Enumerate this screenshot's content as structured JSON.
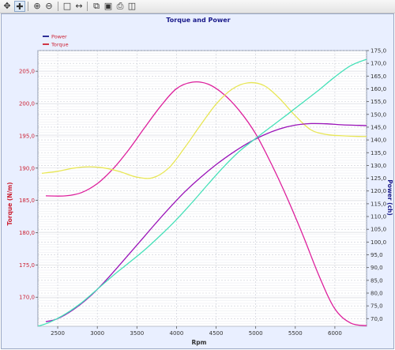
{
  "toolbar": {
    "icons": [
      "pan-icon",
      "move-icon",
      "zoom-in-icon",
      "zoom-out-icon",
      "select-box-icon",
      "cursor-icon",
      "copy-icon",
      "save-icon",
      "print-icon",
      "export-icon"
    ]
  },
  "chart_data": {
    "type": "line",
    "title": "Torque and Power",
    "xlabel": "Rpm",
    "ylabel_left": "Torque (N/m)",
    "ylabel_right": "Power (ch)",
    "xlim": [
      2250,
      6400
    ],
    "ylim_left": [
      165.5,
      208.2
    ],
    "ylim_right": [
      67,
      175
    ],
    "x_ticks": [
      "2500",
      "3000",
      "3500",
      "4000",
      "4500",
      "5000",
      "5500",
      "6000"
    ],
    "y_ticks_left": [
      "170,0",
      "175,0",
      "180,0",
      "185,0",
      "190,0",
      "195,0",
      "200,0",
      "205,0"
    ],
    "y_ticks_right": [
      "70,0",
      "75,0",
      "80,0",
      "85,0",
      "90,0",
      "95,0",
      "100,0",
      "105,0",
      "110,0",
      "115,0",
      "120,0",
      "125,0",
      "130,0",
      "135,0",
      "140,0",
      "145,0",
      "150,0",
      "155,0",
      "160,0",
      "165,0",
      "170,0",
      "175,0"
    ],
    "legend": {
      "placement": "top-left",
      "entries": [
        {
          "name": "Power",
          "color": "#1a1a8a"
        },
        {
          "name": "Torque",
          "color": "#cc2233"
        }
      ]
    },
    "grid": true,
    "colors": {
      "plot_bg": "#ffffff",
      "frame_bg": "#e9efff",
      "title": "#1a1a8a",
      "left_axis": "#cc2233",
      "right_axis": "#1a1a8a"
    },
    "series": [
      {
        "name": "Torque",
        "axis": "left",
        "color": "#dd1f9c",
        "x": [
          2350,
          2600,
          2800,
          3000,
          3200,
          3400,
          3600,
          3800,
          4000,
          4200,
          4400,
          4600,
          4800,
          5000,
          5200,
          5400,
          5600,
          5800,
          6000,
          6200,
          6400
        ],
        "y": [
          185.7,
          185.7,
          186.2,
          187.6,
          189.9,
          192.9,
          196.3,
          199.6,
          202.3,
          203.3,
          203.0,
          201.4,
          198.8,
          195.3,
          190.6,
          185.3,
          179.5,
          173.3,
          168.2,
          166.0,
          165.6
        ]
      },
      {
        "axis": "left",
        "color": "#e8e655",
        "x": [
          2300,
          2500,
          2700,
          2900,
          3100,
          3300,
          3500,
          3700,
          3900,
          4100,
          4300,
          4500,
          4700,
          4900,
          5100,
          5300,
          5500,
          5700,
          5900,
          6100,
          6300,
          6400
        ],
        "y": [
          189.2,
          189.5,
          190.0,
          190.2,
          190.0,
          189.4,
          188.6,
          188.5,
          190.0,
          193.1,
          196.6,
          199.9,
          202.2,
          203.2,
          202.8,
          200.8,
          198.1,
          195.9,
          195.2,
          195.0,
          194.9,
          194.9
        ]
      },
      {
        "name": "Power",
        "axis": "right",
        "color": "#9a12b8",
        "x": [
          2350,
          2500,
          2700,
          2900,
          3100,
          3300,
          3500,
          3700,
          3900,
          4100,
          4300,
          4500,
          4700,
          4900,
          5100,
          5300,
          5500,
          5700,
          5900,
          6100,
          6400
        ],
        "y": [
          68.8,
          70.0,
          73.6,
          78.5,
          84.7,
          91.7,
          98.8,
          106.0,
          113.0,
          119.5,
          125.2,
          130.3,
          134.8,
          138.7,
          141.9,
          144.3,
          145.8,
          146.4,
          146.3,
          145.9,
          145.6
        ]
      },
      {
        "axis": "right",
        "color": "#45e0b8",
        "x": [
          2250,
          2400,
          2600,
          2800,
          3000,
          3200,
          3400,
          3600,
          3800,
          4000,
          4200,
          4400,
          4600,
          4800,
          5000,
          5200,
          5400,
          5600,
          5800,
          6000,
          6200,
          6400
        ],
        "y": [
          67.0,
          68.6,
          71.9,
          76.2,
          81.5,
          86.9,
          91.9,
          97.0,
          102.7,
          108.8,
          115.6,
          122.7,
          129.6,
          135.7,
          140.6,
          145.3,
          150.0,
          154.8,
          159.6,
          164.7,
          169.1,
          171.6
        ]
      }
    ]
  }
}
